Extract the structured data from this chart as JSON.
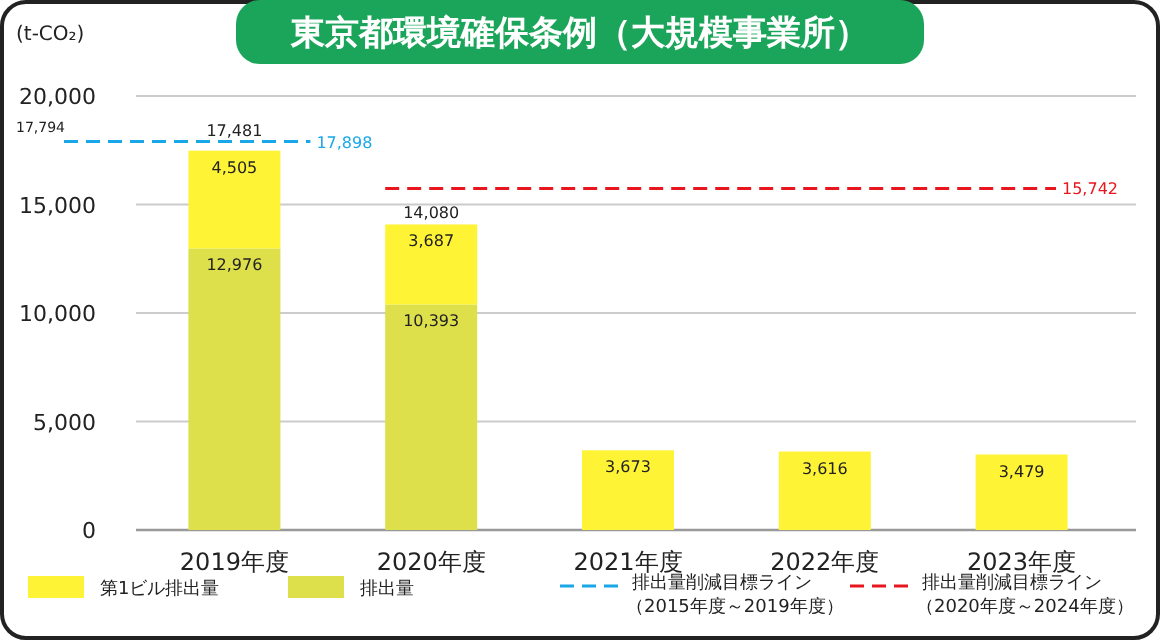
{
  "chart_data": {
    "type": "bar",
    "title": "東京都環境確保条例（大規模事業所）",
    "ylabel": "(t-CO₂)",
    "categories": [
      "2019年度",
      "2020年度",
      "2021年度",
      "2022年度",
      "2023年度"
    ],
    "stacked": true,
    "totals": [
      "17,481",
      "14,080",
      null,
      null,
      null
    ],
    "series": [
      {
        "name": "排出量",
        "color": "#dde04a",
        "values": [
          12976,
          10393,
          null,
          null,
          null
        ],
        "value_labels": [
          "12,976",
          "10,393",
          null,
          null,
          null
        ]
      },
      {
        "name": "第1ビル排出量",
        "color": "#fff335",
        "values": [
          4505,
          3687,
          3673,
          3616,
          3479
        ],
        "value_labels": [
          "4,505",
          "3,687",
          "3,673",
          "3,616",
          "3,479"
        ]
      }
    ],
    "ylim": [
      0,
      20000
    ],
    "yticks": [
      {
        "value": 0,
        "label": "0"
      },
      {
        "value": 5000,
        "label": "5,000"
      },
      {
        "value": 10000,
        "label": "10,000"
      },
      {
        "value": 15000,
        "label": "15,000"
      },
      {
        "value": 20000,
        "label": "20,000"
      }
    ],
    "grid": "y",
    "legend": "bottom",
    "ref_lines": [
      {
        "axis": "y",
        "value": 17898,
        "label": "排出量削減目標ライン（2015年度～2019年度）",
        "color": "#1aa7e8",
        "line_style": "dashed"
      },
      {
        "axis": "y",
        "value": 15742,
        "label": "排出量削減目標ライン（2020年度～2024年度）",
        "color": "#e8161f",
        "line_style": "dashed"
      }
    ],
    "annotations": [
      "17,898",
      "15,742",
      "17,794"
    ]
  }
}
